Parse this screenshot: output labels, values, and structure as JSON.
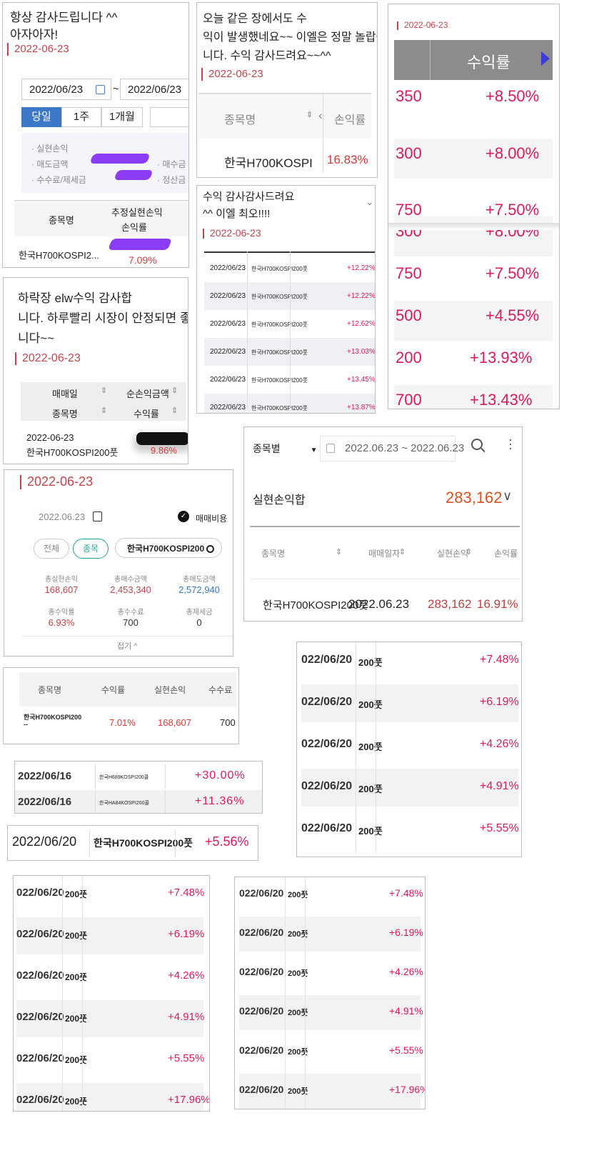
{
  "p1": {
    "comment": [
      "항상 감사드립니다 ^^",
      "아자아자!"
    ],
    "date": "2022-06-23",
    "from_date": "2022/06/23",
    "to_date": "2022/06/23",
    "tilde": "~",
    "tabs": [
      "당일",
      "1주",
      "1개월"
    ],
    "labels": [
      "· 실현손익",
      "· 매도금액",
      "· 수수료/제세금"
    ],
    "labels_right": [
      "· 매수금",
      "· 정산금"
    ],
    "col1": "종목명",
    "col2a": "추정실현손익",
    "col2b": "손익률",
    "stock": "한국H700KOSPI2...",
    "rate": "7.09%"
  },
  "p2": {
    "comment": [
      "오늘 같은 장에서도 수",
      "익이 발생했네요~~ 이엘은 정말 놀랍습",
      "니다. 수익 감사드려요~~^^"
    ],
    "date": "2022-06-23",
    "col1": "종목명",
    "col2": "손익률",
    "stock": "한국H700KOSPI",
    "rate": "16.83%"
  },
  "p3": {
    "date": "2022-06-23",
    "header": "수익률",
    "rows": [
      {
        "left": "350",
        "rate": "+8.50%"
      },
      {
        "left": "300",
        "rate": "+8.00%"
      },
      {
        "left": "750",
        "rate": "+7.50%"
      },
      {
        "left": "300",
        "rate": "+8.00%"
      },
      {
        "left": "750",
        "rate": "+7.50%"
      },
      {
        "left": "500",
        "rate": "+4.55%"
      },
      {
        "left": "200",
        "rate": "+13.93%"
      },
      {
        "left": "700",
        "rate": "+13.43%"
      }
    ]
  },
  "p4": {
    "comment": [
      "수익 감사감사드려요",
      "^^ 이엘 최오!!!!"
    ],
    "date": "2022-06-23",
    "rows": [
      {
        "date": "2022/06/23",
        "stock": "한국H700KOSPI200풋",
        "rate": "+12.22%"
      },
      {
        "date": "2022/06/23",
        "stock": "한국H700KOSPI200풋",
        "rate": "+12.22%"
      },
      {
        "date": "2022/06/23",
        "stock": "한국H700KOSPI200풋",
        "rate": "+12.62%"
      },
      {
        "date": "2022/06/23",
        "stock": "한국H700KOSPI200풋",
        "rate": "+13.03%"
      },
      {
        "date": "2022/06/23",
        "stock": "한국H700KOSPI200풋",
        "rate": "+13.45%"
      },
      {
        "date": "2022/06/23",
        "stock": "한국H700KOSPI200풋",
        "rate": "+13.87%"
      }
    ]
  },
  "p5": {
    "comment": [
      "하락장 elw수익 감사합",
      "니다. 하루빨리 시장이 안정되면 좋겠읍",
      "니다~~"
    ],
    "date": "2022-06-23",
    "h1": "매매일",
    "h2": "순손익금액",
    "h3": "종목명",
    "h4": "수익률",
    "row_date": "2022-06-23",
    "row_stock": "한국H700KOSPI200풋",
    "rate": "9.86%"
  },
  "p6": {
    "date": "2022-06-23",
    "select": "종목별",
    "range": "2022.06.23 ~ 2022.06.23",
    "sum_label": "실현손익합",
    "sum_value": "283,162",
    "cols": [
      "종목명",
      "매매일자",
      "실현손익",
      "손익률"
    ],
    "stock": "한국H700KOSPI200풋",
    "trade_date": "2022.06.23",
    "profit": "283,162",
    "rate": "16.91%"
  },
  "p7": {
    "date": "2022-06-23",
    "picker_date": "2022.06.23",
    "fee_label": "매매비용",
    "chip_all": "전체",
    "chip_stock": "종목",
    "search_value": "한국H700KOSPI200",
    "stats": [
      {
        "label": "총실현손익",
        "value": "168,607"
      },
      {
        "label": "총매수금액",
        "value": "2,453,340"
      },
      {
        "label": "총매도금액",
        "value": "2,572,940"
      },
      {
        "label": "총수익률",
        "value": "6.93%"
      },
      {
        "label": "총수수료",
        "value": "700"
      },
      {
        "label": "총제세금",
        "value": "0"
      }
    ],
    "collapse": "접기 ^"
  },
  "p8": {
    "cols": [
      "종목명",
      "수익률",
      "실현손익",
      "수수료"
    ],
    "stock": "한국H700KOSPI200",
    "stock2": "--",
    "rate": "7.01%",
    "profit": "168,607",
    "fee": "700"
  },
  "p9": {
    "rows": [
      {
        "date": "2022/06/16",
        "stock": "한국H689KOSPI200콜",
        "rate": "+30.00%"
      },
      {
        "date": "2022/06/16",
        "stock": "한국HA84KOSPI200콜",
        "rate": "+11.36%"
      }
    ]
  },
  "p10": {
    "date": "2022/06/20",
    "stock": "한국H700KOSPI200풋",
    "rate": "+5.56%"
  },
  "p11": {
    "rows": [
      {
        "date": "022/06/20",
        "stock": "200풋",
        "rate": "+7.48%"
      },
      {
        "date": "022/06/20",
        "stock": "200풋",
        "rate": "+6.19%"
      },
      {
        "date": "022/06/20",
        "stock": "200풋",
        "rate": "+4.26%"
      },
      {
        "date": "022/06/20",
        "stock": "200풋",
        "rate": "+4.91%"
      },
      {
        "date": "022/06/20",
        "stock": "200풋",
        "rate": "+5.55%"
      }
    ]
  },
  "p12": {
    "rows": [
      {
        "date": "022/06/20",
        "stock": "200풋",
        "rate": "+7.48%"
      },
      {
        "date": "022/06/20",
        "stock": "200풋",
        "rate": "+6.19%"
      },
      {
        "date": "022/06/20",
        "stock": "200풋",
        "rate": "+4.26%"
      },
      {
        "date": "022/06/20",
        "stock": "200풋",
        "rate": "+4.91%"
      },
      {
        "date": "022/06/20",
        "stock": "200풋",
        "rate": "+5.55%"
      },
      {
        "date": "022/06/20",
        "stock": "200풋",
        "rate": "+17.96%"
      }
    ]
  },
  "p13": {
    "rows": [
      {
        "date": "022/06/20",
        "stock": "200풋",
        "rate": "+7.48%"
      },
      {
        "date": "022/06/20",
        "stock": "200풋",
        "rate": "+6.19%"
      },
      {
        "date": "022/06/20",
        "stock": "200풋",
        "rate": "+4.26%"
      },
      {
        "date": "022/06/20",
        "stock": "200풋",
        "rate": "+4.91%"
      },
      {
        "date": "022/06/20",
        "stock": "200풋",
        "rate": "+5.55%"
      },
      {
        "date": "022/06/20",
        "stock": "200풋",
        "rate": "+17.96%"
      }
    ]
  },
  "colors": {
    "accent_red": "#c0464d",
    "profit_pink": "#d81b60",
    "tab_blue": "#3d78c8",
    "header_gray": "#8c8c8c"
  }
}
